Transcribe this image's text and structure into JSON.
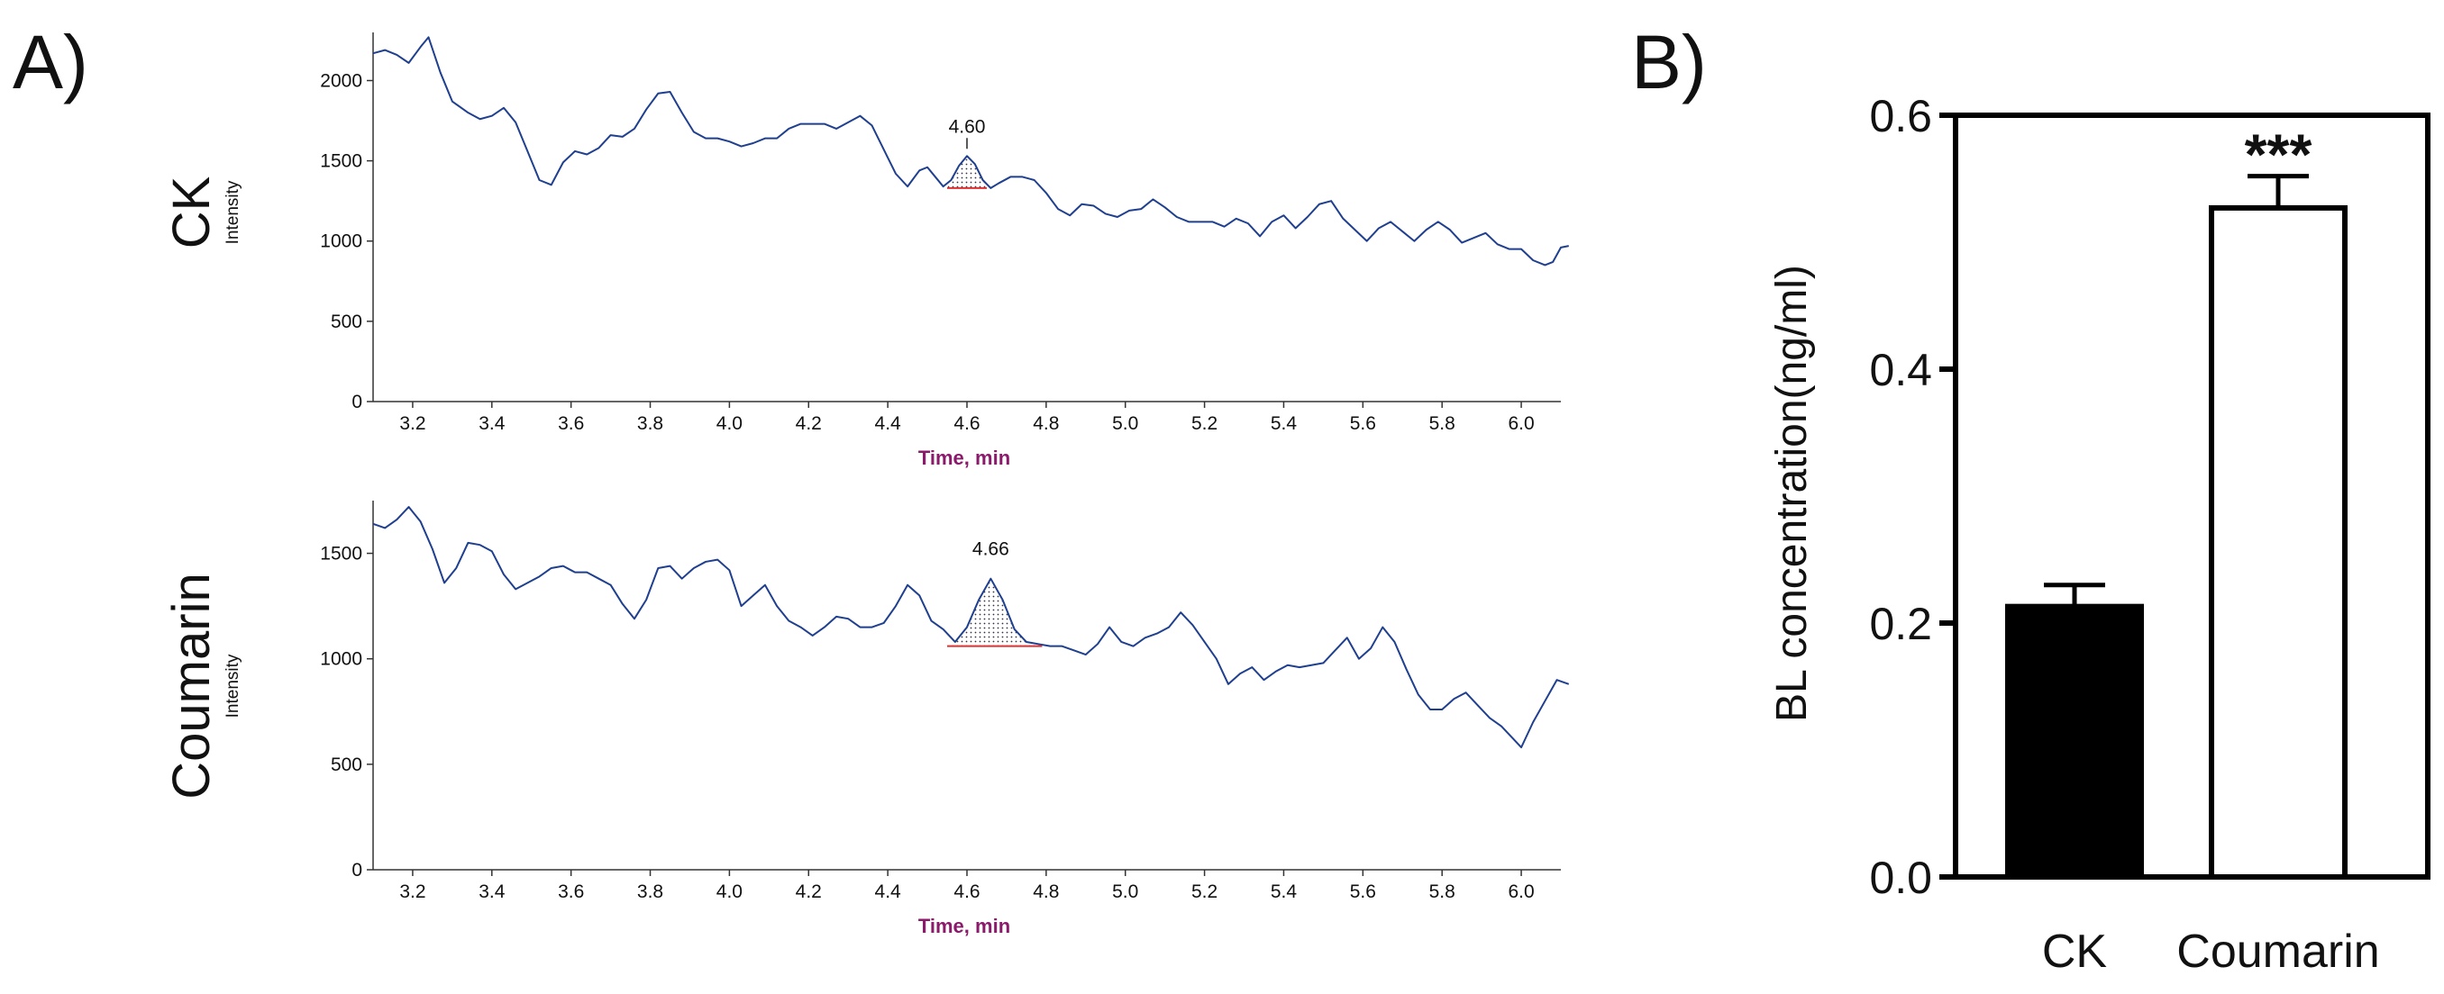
{
  "panels": {
    "a_label": "A)",
    "b_label": "B)"
  },
  "colors": {
    "trace": "#1f3f8f",
    "baseline": "#e03030",
    "axis_title": "#8a1a6a",
    "bar_ck": "#000000",
    "bar_coumarin": "#ffffff"
  },
  "chart_data": [
    {
      "type": "line",
      "panel": "A",
      "row_label": "CK",
      "ylabel": "Intensity",
      "xlabel": "Time, min",
      "xlim": [
        3.1,
        6.1
      ],
      "ylim": [
        0,
        2300
      ],
      "yticks": [
        0,
        500,
        1000,
        1500,
        2000
      ],
      "xticks": [
        3.2,
        3.4,
        3.6,
        3.8,
        4.0,
        4.2,
        4.4,
        4.6,
        4.8,
        5.0,
        5.2,
        5.4,
        5.6,
        5.8,
        6.0
      ],
      "peak": {
        "label": "4.60",
        "x": 4.6,
        "y": 1530,
        "start": 4.55,
        "end": 4.65,
        "baseline": 1330
      },
      "points": [
        [
          3.1,
          2170
        ],
        [
          3.13,
          2190
        ],
        [
          3.16,
          2160
        ],
        [
          3.19,
          2110
        ],
        [
          3.22,
          2210
        ],
        [
          3.24,
          2270
        ],
        [
          3.27,
          2050
        ],
        [
          3.3,
          1870
        ],
        [
          3.34,
          1800
        ],
        [
          3.37,
          1760
        ],
        [
          3.4,
          1780
        ],
        [
          3.43,
          1830
        ],
        [
          3.46,
          1740
        ],
        [
          3.49,
          1560
        ],
        [
          3.52,
          1380
        ],
        [
          3.55,
          1350
        ],
        [
          3.58,
          1490
        ],
        [
          3.61,
          1560
        ],
        [
          3.64,
          1540
        ],
        [
          3.67,
          1580
        ],
        [
          3.7,
          1660
        ],
        [
          3.73,
          1650
        ],
        [
          3.76,
          1700
        ],
        [
          3.79,
          1820
        ],
        [
          3.82,
          1920
        ],
        [
          3.85,
          1930
        ],
        [
          3.88,
          1800
        ],
        [
          3.91,
          1680
        ],
        [
          3.94,
          1640
        ],
        [
          3.97,
          1640
        ],
        [
          4.0,
          1620
        ],
        [
          4.03,
          1590
        ],
        [
          4.06,
          1610
        ],
        [
          4.09,
          1640
        ],
        [
          4.12,
          1640
        ],
        [
          4.15,
          1700
        ],
        [
          4.18,
          1730
        ],
        [
          4.21,
          1730
        ],
        [
          4.24,
          1730
        ],
        [
          4.27,
          1700
        ],
        [
          4.3,
          1740
        ],
        [
          4.33,
          1780
        ],
        [
          4.36,
          1720
        ],
        [
          4.39,
          1570
        ],
        [
          4.42,
          1420
        ],
        [
          4.45,
          1340
        ],
        [
          4.48,
          1440
        ],
        [
          4.5,
          1460
        ],
        [
          4.52,
          1400
        ],
        [
          4.54,
          1340
        ],
        [
          4.56,
          1380
        ],
        [
          4.58,
          1470
        ],
        [
          4.6,
          1530
        ],
        [
          4.62,
          1480
        ],
        [
          4.64,
          1380
        ],
        [
          4.66,
          1330
        ],
        [
          4.68,
          1360
        ],
        [
          4.71,
          1400
        ],
        [
          4.74,
          1400
        ],
        [
          4.77,
          1380
        ],
        [
          4.8,
          1300
        ],
        [
          4.83,
          1200
        ],
        [
          4.86,
          1160
        ],
        [
          4.89,
          1230
        ],
        [
          4.92,
          1220
        ],
        [
          4.95,
          1170
        ],
        [
          4.98,
          1150
        ],
        [
          5.01,
          1190
        ],
        [
          5.04,
          1200
        ],
        [
          5.07,
          1260
        ],
        [
          5.1,
          1210
        ],
        [
          5.13,
          1150
        ],
        [
          5.16,
          1120
        ],
        [
          5.19,
          1120
        ],
        [
          5.22,
          1120
        ],
        [
          5.25,
          1090
        ],
        [
          5.28,
          1140
        ],
        [
          5.31,
          1110
        ],
        [
          5.34,
          1030
        ],
        [
          5.37,
          1120
        ],
        [
          5.4,
          1160
        ],
        [
          5.43,
          1080
        ],
        [
          5.46,
          1150
        ],
        [
          5.49,
          1230
        ],
        [
          5.52,
          1250
        ],
        [
          5.55,
          1140
        ],
        [
          5.58,
          1070
        ],
        [
          5.61,
          1000
        ],
        [
          5.64,
          1080
        ],
        [
          5.67,
          1120
        ],
        [
          5.7,
          1060
        ],
        [
          5.73,
          1000
        ],
        [
          5.76,
          1070
        ],
        [
          5.79,
          1120
        ],
        [
          5.82,
          1070
        ],
        [
          5.85,
          990
        ],
        [
          5.88,
          1020
        ],
        [
          5.91,
          1050
        ],
        [
          5.94,
          980
        ],
        [
          5.97,
          950
        ],
        [
          6.0,
          950
        ],
        [
          6.03,
          880
        ],
        [
          6.06,
          850
        ],
        [
          6.08,
          870
        ],
        [
          6.1,
          960
        ],
        [
          6.12,
          970
        ]
      ]
    },
    {
      "type": "line",
      "panel": "A",
      "row_label": "Coumarin",
      "ylabel": "Intensity",
      "xlabel": "Time, min",
      "xlim": [
        3.1,
        6.1
      ],
      "ylim": [
        0,
        1750
      ],
      "yticks": [
        0,
        500,
        1000,
        1500
      ],
      "xticks": [
        3.2,
        3.4,
        3.6,
        3.8,
        4.0,
        4.2,
        4.4,
        4.6,
        4.8,
        5.0,
        5.2,
        5.4,
        5.6,
        5.8,
        6.0
      ],
      "peak": {
        "label": "4.66",
        "x": 4.66,
        "y": 1380,
        "start": 4.55,
        "end": 4.79,
        "baseline": 1060
      },
      "points": [
        [
          3.1,
          1640
        ],
        [
          3.13,
          1620
        ],
        [
          3.16,
          1660
        ],
        [
          3.19,
          1720
        ],
        [
          3.22,
          1650
        ],
        [
          3.25,
          1520
        ],
        [
          3.28,
          1360
        ],
        [
          3.31,
          1430
        ],
        [
          3.34,
          1550
        ],
        [
          3.37,
          1540
        ],
        [
          3.4,
          1510
        ],
        [
          3.43,
          1400
        ],
        [
          3.46,
          1330
        ],
        [
          3.49,
          1360
        ],
        [
          3.52,
          1390
        ],
        [
          3.55,
          1430
        ],
        [
          3.58,
          1440
        ],
        [
          3.61,
          1410
        ],
        [
          3.64,
          1410
        ],
        [
          3.67,
          1380
        ],
        [
          3.7,
          1350
        ],
        [
          3.73,
          1260
        ],
        [
          3.76,
          1190
        ],
        [
          3.79,
          1280
        ],
        [
          3.82,
          1430
        ],
        [
          3.85,
          1440
        ],
        [
          3.88,
          1380
        ],
        [
          3.91,
          1430
        ],
        [
          3.94,
          1460
        ],
        [
          3.97,
          1470
        ],
        [
          4.0,
          1420
        ],
        [
          4.03,
          1250
        ],
        [
          4.06,
          1300
        ],
        [
          4.09,
          1350
        ],
        [
          4.12,
          1250
        ],
        [
          4.15,
          1180
        ],
        [
          4.18,
          1150
        ],
        [
          4.21,
          1110
        ],
        [
          4.24,
          1150
        ],
        [
          4.27,
          1200
        ],
        [
          4.3,
          1190
        ],
        [
          4.33,
          1150
        ],
        [
          4.36,
          1150
        ],
        [
          4.39,
          1170
        ],
        [
          4.42,
          1250
        ],
        [
          4.45,
          1350
        ],
        [
          4.48,
          1300
        ],
        [
          4.51,
          1180
        ],
        [
          4.54,
          1140
        ],
        [
          4.57,
          1080
        ],
        [
          4.6,
          1150
        ],
        [
          4.63,
          1280
        ],
        [
          4.66,
          1380
        ],
        [
          4.69,
          1280
        ],
        [
          4.72,
          1140
        ],
        [
          4.75,
          1080
        ],
        [
          4.78,
          1070
        ],
        [
          4.81,
          1060
        ],
        [
          4.84,
          1060
        ],
        [
          4.87,
          1040
        ],
        [
          4.9,
          1020
        ],
        [
          4.93,
          1070
        ],
        [
          4.96,
          1150
        ],
        [
          4.99,
          1080
        ],
        [
          5.02,
          1060
        ],
        [
          5.05,
          1100
        ],
        [
          5.08,
          1120
        ],
        [
          5.11,
          1150
        ],
        [
          5.14,
          1220
        ],
        [
          5.17,
          1160
        ],
        [
          5.2,
          1080
        ],
        [
          5.23,
          1000
        ],
        [
          5.26,
          880
        ],
        [
          5.29,
          930
        ],
        [
          5.32,
          960
        ],
        [
          5.35,
          900
        ],
        [
          5.38,
          940
        ],
        [
          5.41,
          970
        ],
        [
          5.44,
          960
        ],
        [
          5.47,
          970
        ],
        [
          5.5,
          980
        ],
        [
          5.53,
          1040
        ],
        [
          5.56,
          1100
        ],
        [
          5.59,
          1000
        ],
        [
          5.62,
          1050
        ],
        [
          5.65,
          1150
        ],
        [
          5.68,
          1080
        ],
        [
          5.71,
          950
        ],
        [
          5.74,
          830
        ],
        [
          5.77,
          760
        ],
        [
          5.8,
          760
        ],
        [
          5.83,
          810
        ],
        [
          5.86,
          840
        ],
        [
          5.89,
          780
        ],
        [
          5.92,
          720
        ],
        [
          5.95,
          680
        ],
        [
          5.98,
          620
        ],
        [
          6.0,
          580
        ],
        [
          6.03,
          700
        ],
        [
          6.06,
          800
        ],
        [
          6.09,
          900
        ],
        [
          6.12,
          880
        ]
      ]
    },
    {
      "type": "bar",
      "panel": "B",
      "categories": [
        "CK",
        "Coumarin"
      ],
      "values": [
        0.213,
        0.527
      ],
      "errors": [
        0.017,
        0.025
      ],
      "ylabel": "BL concentration(ng/ml)",
      "ylim": [
        0,
        0.6
      ],
      "yticks": [
        "0.0",
        "0.2",
        "0.4",
        "0.6"
      ],
      "annotations": [
        {
          "category": "Coumarin",
          "text": "***"
        }
      ]
    }
  ]
}
